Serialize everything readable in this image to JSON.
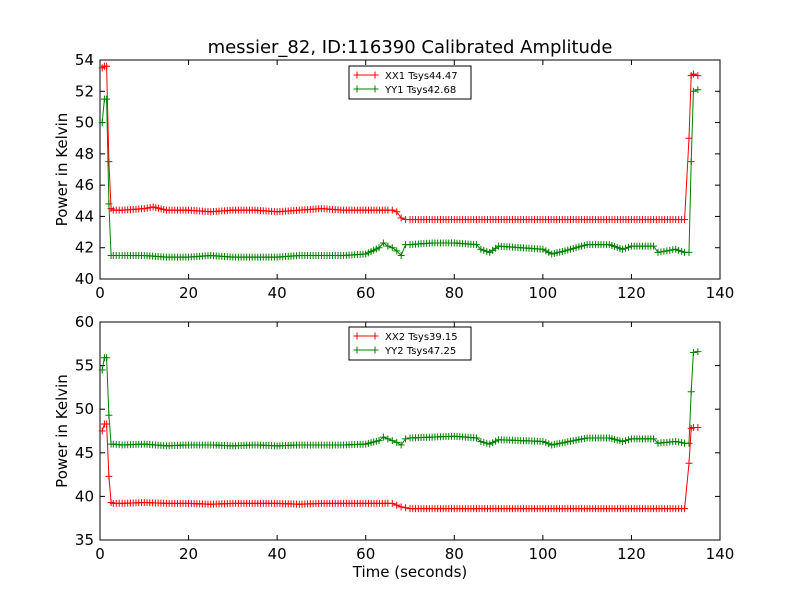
{
  "chart_data": [
    {
      "type": "line",
      "title": "messier_82, ID:116390 Calibrated Amplitude",
      "xlabel": "",
      "ylabel": "Power in Kelvin",
      "xlim": [
        0,
        140
      ],
      "ylim": [
        40,
        54
      ],
      "xticks": [
        "0",
        "20",
        "40",
        "60",
        "80",
        "100",
        "120",
        "140"
      ],
      "yticks": [
        "40",
        "42",
        "44",
        "46",
        "48",
        "50",
        "52",
        "54"
      ],
      "grid": false,
      "legend_position": "top-center",
      "series": [
        {
          "name": "XX1 Tsys44.47",
          "color": "#ff0000",
          "marker": "plus",
          "x": [
            0.5,
            1,
            1.5,
            2,
            2.5,
            3,
            5,
            10,
            12,
            15,
            20,
            25,
            30,
            35,
            40,
            45,
            50,
            55,
            60,
            65,
            66,
            67,
            68,
            69,
            70,
            75,
            80,
            85,
            90,
            95,
            100,
            105,
            110,
            115,
            120,
            125,
            130,
            132,
            133,
            133.5,
            134,
            135
          ],
          "y": [
            53.5,
            53.6,
            53.6,
            47.5,
            44.5,
            44.4,
            44.4,
            44.5,
            44.6,
            44.4,
            44.4,
            44.3,
            44.4,
            44.4,
            44.3,
            44.4,
            44.5,
            44.4,
            44.4,
            44.4,
            44.4,
            44.3,
            43.9,
            43.8,
            43.8,
            43.8,
            43.8,
            43.8,
            43.8,
            43.8,
            43.8,
            43.8,
            43.8,
            43.8,
            43.8,
            43.8,
            43.8,
            43.8,
            49.0,
            53.0,
            53.1,
            53.0
          ]
        },
        {
          "name": "YY1 Tsys42.68",
          "color": "#008000",
          "marker": "plus",
          "x": [
            0.5,
            1,
            1.5,
            2,
            2.5,
            3,
            5,
            10,
            15,
            20,
            25,
            30,
            35,
            40,
            45,
            50,
            55,
            60,
            63,
            64,
            65,
            66,
            67,
            68,
            69,
            70,
            75,
            80,
            85,
            86,
            88,
            90,
            95,
            100,
            102,
            105,
            110,
            115,
            118,
            120,
            125,
            126,
            128,
            130,
            132,
            133,
            133.5,
            134,
            135
          ],
          "y": [
            50.0,
            51.5,
            51.5,
            44.8,
            41.5,
            41.5,
            41.5,
            41.5,
            41.4,
            41.4,
            41.5,
            41.4,
            41.4,
            41.4,
            41.5,
            41.5,
            41.5,
            41.6,
            42.0,
            42.3,
            42.1,
            42.0,
            41.8,
            41.5,
            42.2,
            42.2,
            42.3,
            42.3,
            42.2,
            41.9,
            41.7,
            42.1,
            42.0,
            41.9,
            41.6,
            41.8,
            42.2,
            42.2,
            41.9,
            42.1,
            42.1,
            41.7,
            41.8,
            41.9,
            41.7,
            41.7,
            47.5,
            52.0,
            52.1
          ]
        }
      ]
    },
    {
      "type": "line",
      "title": "",
      "xlabel": "Time (seconds)",
      "ylabel": "Power in Kelvin",
      "xlim": [
        0,
        140
      ],
      "ylim": [
        35,
        60
      ],
      "xticks": [
        "0",
        "20",
        "40",
        "60",
        "80",
        "100",
        "120",
        "140"
      ],
      "yticks": [
        "35",
        "40",
        "45",
        "50",
        "55",
        "60"
      ],
      "grid": false,
      "legend_position": "top-center",
      "series": [
        {
          "name": "XX2 Tsys39.15",
          "color": "#ff0000",
          "marker": "plus",
          "x": [
            0.5,
            1,
            1.5,
            2,
            2.5,
            3,
            5,
            10,
            15,
            20,
            25,
            30,
            35,
            40,
            45,
            50,
            55,
            60,
            65,
            66,
            67,
            68,
            69,
            70,
            75,
            80,
            85,
            90,
            95,
            100,
            105,
            110,
            115,
            120,
            125,
            130,
            132,
            133,
            133.5,
            134,
            135
          ],
          "y": [
            47.5,
            48.3,
            48.3,
            42.3,
            39.3,
            39.2,
            39.2,
            39.3,
            39.2,
            39.2,
            39.1,
            39.2,
            39.2,
            39.2,
            39.1,
            39.2,
            39.2,
            39.2,
            39.2,
            39.2,
            39.0,
            38.8,
            38.7,
            38.6,
            38.6,
            38.6,
            38.6,
            38.6,
            38.6,
            38.6,
            38.6,
            38.6,
            38.6,
            38.6,
            38.6,
            38.6,
            38.6,
            43.8,
            47.8,
            47.9,
            47.9
          ]
        },
        {
          "name": "YY2 Tsys47.25",
          "color": "#008000",
          "marker": "plus",
          "x": [
            0.5,
            1,
            1.5,
            2,
            2.5,
            3,
            5,
            10,
            15,
            20,
            25,
            30,
            35,
            40,
            45,
            50,
            55,
            60,
            63,
            64,
            65,
            66,
            67,
            68,
            69,
            70,
            75,
            80,
            85,
            86,
            88,
            90,
            95,
            100,
            102,
            105,
            110,
            115,
            118,
            120,
            125,
            126,
            128,
            130,
            132,
            133,
            133.5,
            134,
            135
          ],
          "y": [
            54.5,
            55.9,
            55.9,
            49.3,
            46.0,
            46.0,
            45.9,
            46.0,
            45.8,
            45.9,
            45.9,
            45.8,
            45.9,
            45.8,
            45.9,
            45.9,
            45.9,
            46.0,
            46.4,
            46.8,
            46.6,
            46.4,
            46.2,
            45.9,
            46.6,
            46.7,
            46.8,
            46.9,
            46.7,
            46.3,
            46.0,
            46.5,
            46.4,
            46.3,
            45.9,
            46.2,
            46.7,
            46.7,
            46.3,
            46.6,
            46.6,
            46.1,
            46.2,
            46.3,
            46.1,
            46.1,
            52.0,
            56.5,
            56.6
          ]
        }
      ]
    }
  ]
}
